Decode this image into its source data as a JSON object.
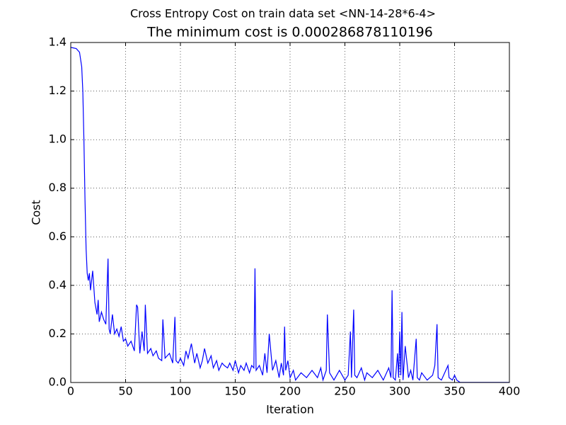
{
  "chart_data": {
    "type": "line",
    "suptitle": "Cross Entropy Cost on train data set <NN-14-28*6-4>",
    "title": "The minimum cost is 0.000286878110196",
    "xlabel": "Iteration",
    "ylabel": "Cost",
    "color": "#0000ff",
    "grid": true,
    "xlim": [
      0,
      400
    ],
    "xticks": [
      0,
      50,
      100,
      150,
      200,
      250,
      300,
      350,
      400
    ],
    "ylim": [
      0,
      1.4
    ],
    "yticks": [
      {
        "value": 0,
        "label": "0.0"
      },
      0.2,
      0.4,
      0.6,
      0.8,
      {
        "value": 1,
        "label": "1.0"
      },
      1.2,
      1.4
    ],
    "x": [
      0,
      5,
      8,
      10,
      11,
      12,
      13,
      14,
      15,
      16,
      17,
      18,
      19,
      20,
      22,
      24,
      25,
      26,
      28,
      30,
      32,
      34,
      35,
      36,
      38,
      40,
      42,
      44,
      46,
      48,
      50,
      52,
      55,
      58,
      60,
      61,
      63,
      65,
      67,
      68,
      70,
      73,
      75,
      78,
      80,
      83,
      84,
      86,
      90,
      93,
      95,
      96,
      98,
      100,
      103,
      105,
      107,
      110,
      113,
      115,
      118,
      120,
      122,
      125,
      128,
      130,
      133,
      135,
      138,
      140,
      143,
      145,
      148,
      150,
      153,
      155,
      158,
      160,
      163,
      165,
      167,
      168,
      169,
      172,
      175,
      177,
      179,
      181,
      184,
      187,
      190,
      192,
      194,
      195,
      196,
      198,
      200,
      203,
      205,
      210,
      215,
      220,
      225,
      228,
      230,
      233,
      234,
      236,
      240,
      245,
      250,
      253,
      255,
      256,
      258,
      259,
      261,
      265,
      268,
      270,
      275,
      280,
      285,
      290,
      292,
      293,
      294,
      296,
      298,
      299,
      300,
      301,
      302,
      303,
      305,
      308,
      310,
      312,
      315,
      316,
      318,
      320,
      325,
      330,
      332,
      334,
      335,
      338,
      340,
      344,
      345,
      348,
      350,
      351,
      352,
      355,
      360,
      380,
      400
    ],
    "values": [
      1.38,
      1.375,
      1.36,
      1.3,
      1.2,
      1.0,
      0.75,
      0.55,
      0.45,
      0.42,
      0.45,
      0.38,
      0.42,
      0.46,
      0.33,
      0.28,
      0.34,
      0.25,
      0.29,
      0.26,
      0.24,
      0.51,
      0.22,
      0.2,
      0.28,
      0.2,
      0.22,
      0.19,
      0.23,
      0.17,
      0.18,
      0.15,
      0.17,
      0.13,
      0.32,
      0.31,
      0.12,
      0.21,
      0.13,
      0.32,
      0.12,
      0.14,
      0.11,
      0.13,
      0.1,
      0.09,
      0.26,
      0.1,
      0.12,
      0.08,
      0.27,
      0.09,
      0.08,
      0.1,
      0.07,
      0.13,
      0.1,
      0.16,
      0.08,
      0.12,
      0.06,
      0.09,
      0.14,
      0.08,
      0.11,
      0.06,
      0.09,
      0.05,
      0.08,
      0.07,
      0.06,
      0.08,
      0.05,
      0.09,
      0.04,
      0.07,
      0.05,
      0.08,
      0.04,
      0.07,
      0.06,
      0.47,
      0.05,
      0.07,
      0.03,
      0.12,
      0.04,
      0.2,
      0.05,
      0.09,
      0.02,
      0.08,
      0.03,
      0.23,
      0.05,
      0.09,
      0.02,
      0.05,
      0.01,
      0.04,
      0.02,
      0.05,
      0.02,
      0.06,
      0.01,
      0.05,
      0.28,
      0.04,
      0.01,
      0.05,
      0.01,
      0.03,
      0.21,
      0.02,
      0.3,
      0.03,
      0.02,
      0.06,
      0.01,
      0.04,
      0.02,
      0.05,
      0.01,
      0.06,
      0.02,
      0.38,
      0.02,
      0.01,
      0.12,
      0.02,
      0.21,
      0.03,
      0.29,
      0.01,
      0.15,
      0.02,
      0.05,
      0.01,
      0.18,
      0.02,
      0.01,
      0.04,
      0.01,
      0.03,
      0.07,
      0.24,
      0.02,
      0.01,
      0.03,
      0.07,
      0.02,
      0.01,
      0.03,
      0.02,
      0.01,
      0.0003,
      0.0003,
      0.0003,
      0.0003
    ]
  }
}
